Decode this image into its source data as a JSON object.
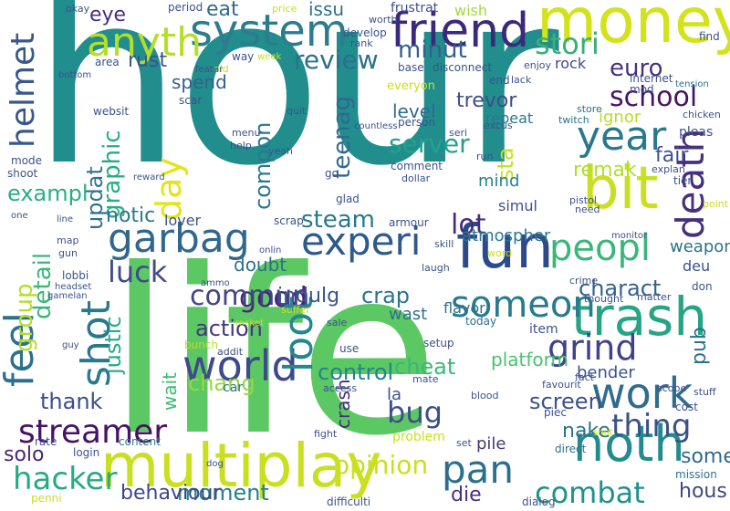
{
  "words": [
    {
      "text": "hour",
      "color": "#218e8d"
    },
    {
      "text": "life",
      "color": "#5cc863"
    },
    {
      "text": "money",
      "color": "#d2e21b"
    },
    {
      "text": "multiplay",
      "color": "#c8e020"
    },
    {
      "text": "fun",
      "color": "#2c4a8a"
    },
    {
      "text": "bit",
      "color": "#c8e020"
    },
    {
      "text": "trash",
      "color": "#25a584"
    },
    {
      "text": "friend",
      "color": "#3b2a7a"
    },
    {
      "text": "system",
      "color": "#2b7d8e"
    },
    {
      "text": "anyth",
      "color": "#b5de2b"
    },
    {
      "text": "garbag",
      "color": "#31678e"
    },
    {
      "text": "experi",
      "color": "#2d5a8c"
    },
    {
      "text": "noth",
      "color": "#228b8d"
    },
    {
      "text": "work",
      "color": "#2f6c8e"
    },
    {
      "text": "year",
      "color": "#2a788e"
    },
    {
      "text": "peopl",
      "color": "#3ab67a"
    },
    {
      "text": "grind",
      "color": "#404387"
    },
    {
      "text": "someon",
      "color": "#287a8e"
    },
    {
      "text": "world",
      "color": "#3e4a89"
    },
    {
      "text": "pan",
      "color": "#2b6f8e"
    },
    {
      "text": "thing",
      "color": "#3b5288"
    },
    {
      "text": "hacker",
      "color": "#25ab82"
    },
    {
      "text": "streamer",
      "color": "#471365"
    },
    {
      "text": "good",
      "color": "#482475"
    },
    {
      "text": "luck",
      "color": "#3e4c8a"
    },
    {
      "text": "stori",
      "color": "#3aaf79"
    },
    {
      "text": "school",
      "color": "#471365"
    },
    {
      "text": "minut",
      "color": "#35608d"
    },
    {
      "text": "review",
      "color": "#2d708e"
    },
    {
      "text": "lot",
      "color": "#472d7b"
    },
    {
      "text": "server",
      "color": "#25a08a"
    },
    {
      "text": "steam",
      "color": "#2a788e"
    },
    {
      "text": "commun",
      "color": "#414487"
    },
    {
      "text": "combat",
      "color": "#20928c"
    },
    {
      "text": "opinion",
      "color": "#c8e020"
    },
    {
      "text": "moment",
      "color": "#26828e"
    },
    {
      "text": "bug",
      "color": "#3c4f8a"
    },
    {
      "text": "thank",
      "color": "#3d4e8a"
    },
    {
      "text": "chang",
      "color": "#94d840"
    },
    {
      "text": "action",
      "color": "#453681"
    },
    {
      "text": "screen",
      "color": "#3b528b"
    },
    {
      "text": "charact",
      "color": "#33628d"
    },
    {
      "text": "crap",
      "color": "#2c738e"
    },
    {
      "text": "control",
      "color": "#26828e"
    },
    {
      "text": "cheat",
      "color": "#38b977"
    },
    {
      "text": "nake",
      "color": "#2d718e"
    },
    {
      "text": "hous",
      "color": "#3f4788"
    },
    {
      "text": "somethi",
      "color": "#31688e"
    },
    {
      "text": "solo",
      "color": "#482878"
    },
    {
      "text": "die",
      "color": "#46327e"
    },
    {
      "text": "feel",
      "color": "#2d708e"
    },
    {
      "text": "shot",
      "color": "#2a788e"
    },
    {
      "text": "loot",
      "color": "#24878e"
    },
    {
      "text": "day",
      "color": "#e5e419"
    },
    {
      "text": "death",
      "color": "#46307e"
    },
    {
      "text": "helmet",
      "color": "#38588c"
    },
    {
      "text": "group",
      "color": "#b5de2b"
    },
    {
      "text": "detail",
      "color": "#3ab67a"
    },
    {
      "text": "updat",
      "color": "#2d718e"
    },
    {
      "text": "graphic",
      "color": "#27ad81"
    },
    {
      "text": "justic",
      "color": "#25ac82"
    },
    {
      "text": "compon",
      "color": "#2a788e"
    },
    {
      "text": "teenag",
      "color": "#31688e"
    },
    {
      "text": "sta",
      "color": "#c5e021"
    },
    {
      "text": "pub",
      "color": "#2d708e"
    },
    {
      "text": "wait",
      "color": "#3bbb75"
    },
    {
      "text": "crash",
      "color": "#472c7a"
    },
    {
      "text": "trevor",
      "color": "#3d4d8a"
    },
    {
      "text": "level",
      "color": "#2f6b8e"
    },
    {
      "text": "repeat",
      "color": "#2a788e"
    },
    {
      "text": "euro",
      "color": "#46327e"
    },
    {
      "text": "remak",
      "color": "#b2dd2d"
    },
    {
      "text": "fair",
      "color": "#3b528b"
    },
    {
      "text": "issu",
      "color": "#2d708e"
    },
    {
      "text": "eat",
      "color": "#2f6c8e"
    },
    {
      "text": "eye",
      "color": "#46307e"
    },
    {
      "text": "rust",
      "color": "#3b528b"
    },
    {
      "text": "spend",
      "color": "#34618d"
    },
    {
      "text": "exampl",
      "color": "#29af7f"
    },
    {
      "text": "notic",
      "color": "#2a788e"
    },
    {
      "text": "doubt",
      "color": "#2d708e"
    },
    {
      "text": "indulg",
      "color": "#39558c"
    },
    {
      "text": "behaviour",
      "color": "#404688"
    },
    {
      "text": "la",
      "color": "#3b528b"
    },
    {
      "text": "wast",
      "color": "#2d708e"
    },
    {
      "text": "bender",
      "color": "#3b528b"
    },
    {
      "text": "platform",
      "color": "#4ac16d"
    },
    {
      "text": "ignor",
      "color": "#b8de29"
    },
    {
      "text": "weapon",
      "color": "#2d708e"
    },
    {
      "text": "atmospher",
      "color": "#2a788e"
    },
    {
      "text": "lover",
      "color": "#3b528b"
    },
    {
      "text": "pile",
      "color": "#453781"
    },
    {
      "text": "mind",
      "color": "#26828e"
    },
    {
      "text": "simul",
      "color": "#3b528b"
    },
    {
      "text": "rock",
      "color": "#3e4c8a"
    },
    {
      "text": "wish",
      "color": "#9fda3a"
    },
    {
      "text": "deu",
      "color": "#3b528b"
    },
    {
      "text": "flavor",
      "color": "#2d708e"
    },
    {
      "text": "today",
      "color": "#2d708e"
    },
    {
      "text": "item",
      "color": "#3b528b"
    },
    {
      "text": "setup",
      "color": "#3b528b"
    },
    {
      "text": "bunch",
      "color": "#b5de2b"
    },
    {
      "text": "car",
      "color": "#2d708e"
    },
    {
      "text": "frustrat",
      "color": "#3b528b"
    },
    {
      "text": "problem",
      "color": "#c8e020"
    },
    {
      "text": "direct",
      "color": "#2d708e"
    },
    {
      "text": "content",
      "color": "#2a788e"
    },
    {
      "text": "penni",
      "color": "#c8e020"
    },
    {
      "text": "difficulti",
      "color": "#3b528b"
    },
    {
      "text": "dialog",
      "color": "#3b528b"
    },
    {
      "text": "mission",
      "color": "#2d708e"
    },
    {
      "text": "login",
      "color": "#3b528b"
    },
    {
      "text": "rate",
      "color": "#3b528b"
    },
    {
      "text": "period",
      "color": "#3b528b"
    },
    {
      "text": "price",
      "color": "#c8e020"
    },
    {
      "text": "okay",
      "color": "#3b528b"
    },
    {
      "text": "develop",
      "color": "#3b528b"
    },
    {
      "text": "worth",
      "color": "#3b528b"
    },
    {
      "text": "rank",
      "color": "#3b528b"
    },
    {
      "text": "seri",
      "color": "#3b528b"
    },
    {
      "text": "find",
      "color": "#3b528b"
    },
    {
      "text": "internet",
      "color": "#3b528b"
    },
    {
      "text": "tension",
      "color": "#2d708e"
    },
    {
      "text": "mod",
      "color": "#3b528b"
    },
    {
      "text": "store",
      "color": "#2d708e"
    },
    {
      "text": "twitch",
      "color": "#2d708e"
    },
    {
      "text": "chicken",
      "color": "#3b528b"
    },
    {
      "text": "pleas",
      "color": "#3b528b"
    },
    {
      "text": "pistol",
      "color": "#3b528b"
    },
    {
      "text": "need",
      "color": "#3b528b"
    },
    {
      "text": "monitor",
      "color": "#3b528b"
    },
    {
      "text": "tier",
      "color": "#3b528b"
    },
    {
      "text": "explan",
      "color": "#3b528b"
    },
    {
      "text": "point",
      "color": "#c8e020"
    },
    {
      "text": "don",
      "color": "#3b528b"
    },
    {
      "text": "matter",
      "color": "#3b528b"
    },
    {
      "text": "thought",
      "color": "#3b528b"
    },
    {
      "text": "crime",
      "color": "#3b528b"
    },
    {
      "text": "scope",
      "color": "#3b528b"
    },
    {
      "text": "cost",
      "color": "#3b528b"
    },
    {
      "text": "stuff",
      "color": "#3b528b"
    },
    {
      "text": "fact",
      "color": "#3b528b"
    },
    {
      "text": "favourit",
      "color": "#3b528b"
    },
    {
      "text": "piec",
      "color": "#3b528b"
    },
    {
      "text": "enjoy",
      "color": "#3b528b"
    },
    {
      "text": "end",
      "color": "#3b528b"
    },
    {
      "text": "lack",
      "color": "#3b528b"
    },
    {
      "text": "base",
      "color": "#3b528b"
    },
    {
      "text": "disconnect",
      "color": "#3b528b"
    },
    {
      "text": "everyon",
      "color": "#c8e020"
    },
    {
      "text": "person",
      "color": "#3b528b"
    },
    {
      "text": "excus",
      "color": "#3b528b"
    },
    {
      "text": "run",
      "color": "#3b528b"
    },
    {
      "text": "comment",
      "color": "#3b528b"
    },
    {
      "text": "dollar",
      "color": "#3b528b"
    },
    {
      "text": "countless",
      "color": "#3b528b"
    },
    {
      "text": "quit",
      "color": "#3b528b"
    },
    {
      "text": "yeah",
      "color": "#3b528b"
    },
    {
      "text": "help",
      "color": "#3b528b"
    },
    {
      "text": "menu",
      "color": "#3b528b"
    },
    {
      "text": "glad",
      "color": "#3b528b"
    },
    {
      "text": "go",
      "color": "#3b528b"
    },
    {
      "text": "scrap",
      "color": "#3b528b"
    },
    {
      "text": "armour",
      "color": "#3b528b"
    },
    {
      "text": "skill",
      "color": "#3b528b"
    },
    {
      "text": "word",
      "color": "#c8e020"
    },
    {
      "text": "laugh",
      "color": "#3b528b"
    },
    {
      "text": "mate",
      "color": "#3b528b"
    },
    {
      "text": "access",
      "color": "#3b528b"
    },
    {
      "text": "blood",
      "color": "#3b528b"
    },
    {
      "text": "use",
      "color": "#3b528b"
    },
    {
      "text": "sale",
      "color": "#3b528b"
    },
    {
      "text": "suffer",
      "color": "#c8e020"
    },
    {
      "text": "addit",
      "color": "#3b528b"
    },
    {
      "text": "fight",
      "color": "#3b528b"
    },
    {
      "text": "set",
      "color": "#3b528b"
    },
    {
      "text": "shut",
      "color": "#c8e020"
    },
    {
      "text": "websit",
      "color": "#3b528b"
    },
    {
      "text": "scar",
      "color": "#3b528b"
    },
    {
      "text": "old",
      "color": "#c8e020"
    },
    {
      "text": "way",
      "color": "#3b528b"
    },
    {
      "text": "week",
      "color": "#c8e020"
    },
    {
      "text": "featur",
      "color": "#3b528b"
    },
    {
      "text": "area",
      "color": "#3b528b"
    },
    {
      "text": "bottom",
      "color": "#3b528b"
    },
    {
      "text": "mode",
      "color": "#3b528b"
    },
    {
      "text": "shoot",
      "color": "#3b528b"
    },
    {
      "text": "one",
      "color": "#3b528b"
    },
    {
      "text": "line",
      "color": "#3b528b"
    },
    {
      "text": "reward",
      "color": "#3b528b"
    },
    {
      "text": "map",
      "color": "#3b528b"
    },
    {
      "text": "gun",
      "color": "#3b528b"
    },
    {
      "text": "lobbi",
      "color": "#3b528b"
    },
    {
      "text": "headset",
      "color": "#3b528b"
    },
    {
      "text": "gamelan",
      "color": "#3b528b"
    },
    {
      "text": "ammo",
      "color": "#3b528b"
    },
    {
      "text": "onlin",
      "color": "#3b528b"
    },
    {
      "text": "rocket",
      "color": "#c8e020"
    },
    {
      "text": "guy",
      "color": "#3b528b"
    },
    {
      "text": "dog",
      "color": "#3b528b"
    }
  ]
}
